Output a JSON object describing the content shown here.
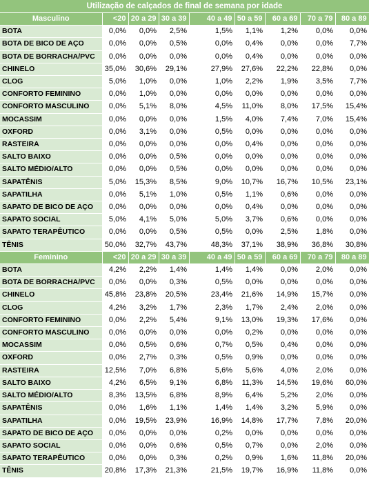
{
  "title": "Utilização de calçados de final de semana por idade",
  "age_groups": [
    "<20",
    "20 a 29",
    "30 a 39",
    "40 a 49",
    "50 a 59",
    "60 a 69",
    "70 a 79",
    "80 a 89"
  ],
  "sections": [
    {
      "label": "Masculino",
      "rows": [
        {
          "name": "BOTA",
          "values": [
            "0,0%",
            "0,0%",
            "2,5%",
            "1,5%",
            "1,1%",
            "1,2%",
            "0,0%",
            "0,0%"
          ]
        },
        {
          "name": "BOTA DE BICO DE AÇO",
          "values": [
            "0,0%",
            "0,0%",
            "0,5%",
            "0,0%",
            "0,4%",
            "0,0%",
            "0,0%",
            "7,7%"
          ]
        },
        {
          "name": "BOTA DE BORRACHA/PVC",
          "values": [
            "0,0%",
            "0,0%",
            "0,0%",
            "0,0%",
            "0,4%",
            "0,0%",
            "0,0%",
            "0,0%"
          ]
        },
        {
          "name": "CHINELO",
          "values": [
            "35,0%",
            "30,6%",
            "29,1%",
            "27,9%",
            "27,6%",
            "22,2%",
            "22,8%",
            "0,0%"
          ]
        },
        {
          "name": "CLOG",
          "values": [
            "5,0%",
            "1,0%",
            "0,0%",
            "1,0%",
            "2,2%",
            "1,9%",
            "3,5%",
            "7,7%"
          ]
        },
        {
          "name": "CONFORTO FEMININO",
          "values": [
            "0,0%",
            "1,0%",
            "0,0%",
            "0,0%",
            "0,0%",
            "0,0%",
            "0,0%",
            "0,0%"
          ]
        },
        {
          "name": "CONFORTO MASCULINO",
          "values": [
            "0,0%",
            "5,1%",
            "8,0%",
            "4,5%",
            "11,0%",
            "8,0%",
            "17,5%",
            "15,4%"
          ]
        },
        {
          "name": "MOCASSIM",
          "values": [
            "0,0%",
            "0,0%",
            "0,0%",
            "1,5%",
            "4,0%",
            "7,4%",
            "7,0%",
            "15,4%"
          ]
        },
        {
          "name": "OXFORD",
          "values": [
            "0,0%",
            "3,1%",
            "0,0%",
            "0,5%",
            "0,0%",
            "0,0%",
            "0,0%",
            "0,0%"
          ]
        },
        {
          "name": "RASTEIRA",
          "values": [
            "0,0%",
            "0,0%",
            "0,0%",
            "0,0%",
            "0,4%",
            "0,0%",
            "0,0%",
            "0,0%"
          ]
        },
        {
          "name": "SALTO BAIXO",
          "values": [
            "0,0%",
            "0,0%",
            "0,5%",
            "0,0%",
            "0,0%",
            "0,0%",
            "0,0%",
            "0,0%"
          ]
        },
        {
          "name": "SALTO MÉDIO/ALTO",
          "values": [
            "0,0%",
            "0,0%",
            "0,5%",
            "0,0%",
            "0,0%",
            "0,0%",
            "0,0%",
            "0,0%"
          ]
        },
        {
          "name": "SAPATÊNIS",
          "values": [
            "5,0%",
            "15,3%",
            "8,5%",
            "9,0%",
            "10,7%",
            "16,7%",
            "10,5%",
            "23,1%"
          ]
        },
        {
          "name": "SAPATILHA",
          "values": [
            "0,0%",
            "5,1%",
            "1,0%",
            "0,5%",
            "1,1%",
            "0,6%",
            "0,0%",
            "0,0%"
          ]
        },
        {
          "name": "SAPATO DE BICO DE AÇO",
          "values": [
            "0,0%",
            "0,0%",
            "0,0%",
            "0,0%",
            "0,4%",
            "0,0%",
            "0,0%",
            "0,0%"
          ]
        },
        {
          "name": "SAPATO SOCIAL",
          "values": [
            "5,0%",
            "4,1%",
            "5,0%",
            "5,0%",
            "3,7%",
            "0,6%",
            "0,0%",
            "0,0%"
          ]
        },
        {
          "name": "SAPATO TERAPÊUTICO",
          "values": [
            "0,0%",
            "0,0%",
            "0,5%",
            "0,5%",
            "0,0%",
            "2,5%",
            "1,8%",
            "0,0%"
          ]
        },
        {
          "name": "TÊNIS",
          "values": [
            "50,0%",
            "32,7%",
            "43,7%",
            "48,3%",
            "37,1%",
            "38,9%",
            "36,8%",
            "30,8%"
          ]
        }
      ]
    },
    {
      "label": "Feminino",
      "rows": [
        {
          "name": "BOTA",
          "values": [
            "4,2%",
            "2,2%",
            "1,4%",
            "1,4%",
            "1,4%",
            "0,0%",
            "2,0%",
            "0,0%"
          ]
        },
        {
          "name": "BOTA DE BORRACHA/PVC",
          "values": [
            "0,0%",
            "0,0%",
            "0,3%",
            "0,5%",
            "0,0%",
            "0,0%",
            "0,0%",
            "0,0%"
          ]
        },
        {
          "name": "CHINELO",
          "values": [
            "45,8%",
            "23,8%",
            "20,5%",
            "23,4%",
            "21,6%",
            "14,9%",
            "15,7%",
            "0,0%"
          ]
        },
        {
          "name": "CLOG",
          "values": [
            "4,2%",
            "3,2%",
            "1,7%",
            "2,3%",
            "1,7%",
            "2,4%",
            "2,0%",
            "0,0%"
          ]
        },
        {
          "name": "CONFORTO FEMININO",
          "values": [
            "0,0%",
            "2,2%",
            "5,4%",
            "9,1%",
            "13,0%",
            "19,3%",
            "17,6%",
            "0,0%"
          ]
        },
        {
          "name": "CONFORTO MASCULINO",
          "values": [
            "0,0%",
            "0,0%",
            "0,0%",
            "0,0%",
            "0,2%",
            "0,0%",
            "0,0%",
            "0,0%"
          ]
        },
        {
          "name": "MOCASSIM",
          "values": [
            "0,0%",
            "0,5%",
            "0,6%",
            "0,7%",
            "0,5%",
            "0,4%",
            "0,0%",
            "0,0%"
          ]
        },
        {
          "name": "OXFORD",
          "values": [
            "0,0%",
            "2,7%",
            "0,3%",
            "0,5%",
            "0,9%",
            "0,0%",
            "0,0%",
            "0,0%"
          ]
        },
        {
          "name": "RASTEIRA",
          "values": [
            "12,5%",
            "7,0%",
            "6,8%",
            "5,6%",
            "5,6%",
            "4,0%",
            "2,0%",
            "0,0%"
          ]
        },
        {
          "name": "SALTO BAIXO",
          "values": [
            "4,2%",
            "6,5%",
            "9,1%",
            "6,8%",
            "11,3%",
            "14,5%",
            "19,6%",
            "60,0%"
          ]
        },
        {
          "name": "SALTO MÉDIO/ALTO",
          "values": [
            "8,3%",
            "13,5%",
            "6,8%",
            "8,9%",
            "6,4%",
            "5,2%",
            "2,0%",
            "0,0%"
          ]
        },
        {
          "name": "SAPATÊNIS",
          "values": [
            "0,0%",
            "1,6%",
            "1,1%",
            "1,4%",
            "1,4%",
            "3,2%",
            "5,9%",
            "0,0%"
          ]
        },
        {
          "name": "SAPATILHA",
          "values": [
            "0,0%",
            "19,5%",
            "23,9%",
            "16,9%",
            "14,8%",
            "17,7%",
            "7,8%",
            "20,0%"
          ]
        },
        {
          "name": "SAPATO DE BICO DE AÇO",
          "values": [
            "0,0%",
            "0,0%",
            "0,0%",
            "0,2%",
            "0,0%",
            "0,0%",
            "0,0%",
            "0,0%"
          ]
        },
        {
          "name": "SAPATO SOCIAL",
          "values": [
            "0,0%",
            "0,0%",
            "0,6%",
            "0,5%",
            "0,7%",
            "0,0%",
            "2,0%",
            "0,0%"
          ]
        },
        {
          "name": "SAPATO TERAPÊUTICO",
          "values": [
            "0,0%",
            "0,0%",
            "0,3%",
            "0,2%",
            "0,9%",
            "1,6%",
            "11,8%",
            "20,0%"
          ]
        },
        {
          "name": "TÊNIS",
          "values": [
            "20,8%",
            "17,3%",
            "21,3%",
            "21,5%",
            "19,7%",
            "16,9%",
            "11,8%",
            "0,0%"
          ]
        }
      ]
    }
  ]
}
